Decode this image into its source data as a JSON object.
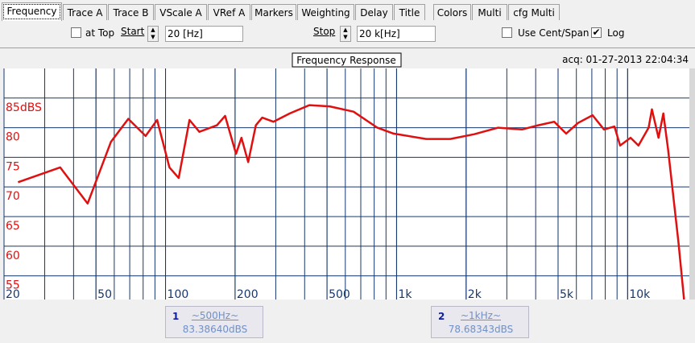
{
  "tabs": [
    "Frequency",
    "Trace A",
    "Trace B",
    "VScale A",
    "VRef A",
    "Markers",
    "Weighting",
    "Delay",
    "Title",
    "Colors",
    "Multi",
    "cfg Multi"
  ],
  "controls": {
    "at_top": "at Top",
    "at_top_checked": false,
    "start_label": "Start",
    "start_value": "20 [Hz]",
    "stop_label": "Stop",
    "stop_value": "20 k[Hz]",
    "cent_span": "Use Cent/Span",
    "cent_span_checked": false,
    "log": "Log",
    "log_checked": true
  },
  "chart_data": {
    "type": "line",
    "title": "Frequency Response",
    "annotation": "acq: 01-27-2013 22:04:34",
    "x": [
      23,
      35,
      46,
      58,
      69,
      82,
      92,
      104,
      114,
      127,
      140,
      167,
      181,
      202,
      213,
      228,
      246,
      262,
      293,
      345,
      419,
      513,
      651,
      826,
      970,
      1343,
      1708,
      2168,
      2751,
      3491,
      4102,
      4813,
      5420,
      6100,
      7050,
      7900,
      8770,
      9280,
      10300,
      11140,
      12330,
      12740,
      13600,
      14270,
      14970,
      16600,
      17550
    ],
    "values": [
      70.8,
      73.3,
      67.2,
      77.6,
      81.5,
      78.6,
      81.3,
      73.3,
      71.5,
      81.3,
      79.3,
      80.4,
      82,
      75.6,
      78.3,
      74.2,
      80.4,
      81.7,
      81,
      82.4,
      83.8,
      83.6,
      82.7,
      80,
      79,
      78.1,
      78.1,
      78.9,
      80,
      79.7,
      80.4,
      81,
      79,
      80.8,
      82.1,
      79.7,
      80.2,
      77,
      78.3,
      77,
      80,
      83.1,
      78.3,
      82.4,
      76.3,
      60.6,
      51
    ],
    "color": "#e01010",
    "xlim": [
      20,
      18500
    ],
    "ylim": [
      51,
      90
    ],
    "log_x": true,
    "grid": true,
    "xticks": [
      20,
      50,
      100,
      200,
      500,
      {
        "value": 1000,
        "label": "1k"
      },
      {
        "value": 2000,
        "label": "2k"
      },
      {
        "value": 5000,
        "label": "5k"
      },
      {
        "value": 10000,
        "label": "10k"
      }
    ],
    "yticks": [
      {
        "value": 85,
        "label": "85dBS"
      },
      80,
      75,
      70,
      65,
      60,
      55
    ]
  },
  "markers": [
    {
      "number": 1,
      "label": "~500Hz~",
      "reading": "83.38640dBS"
    },
    {
      "number": 2,
      "label": "~1kHz~",
      "reading": "78.68343dBS"
    }
  ]
}
